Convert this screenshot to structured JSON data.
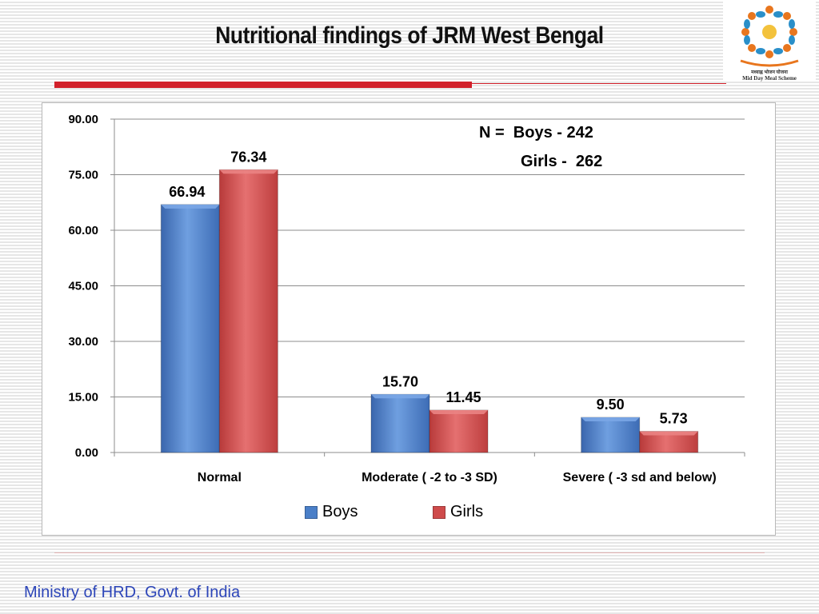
{
  "slide": {
    "title": "Nutritional findings of JRM West Bengal",
    "footer": "Ministry of HRD, Govt. of India",
    "logo_text_hindi": "मध्याह्न भोजन योजना",
    "logo_text_en": "Mid Day Meal Scheme"
  },
  "chart_data": {
    "type": "bar",
    "categories": [
      "Normal",
      "Moderate ( -2 to -3 SD)",
      "Severe  ( -3 sd and below)"
    ],
    "series": [
      {
        "name": "Boys",
        "values": [
          66.94,
          15.7,
          9.5
        ],
        "labels": [
          "66.94",
          "15.70",
          "9.50"
        ],
        "color": "#4a7fc8"
      },
      {
        "name": "Girls",
        "values": [
          76.34,
          11.45,
          5.73
        ],
        "labels": [
          "76.34",
          "11.45",
          "5.73"
        ],
        "color": "#cf4b4b"
      }
    ],
    "yticks": [
      "0.00",
      "15.00",
      "30.00",
      "45.00",
      "60.00",
      "75.00",
      "90.00"
    ],
    "ylim": [
      0,
      90
    ],
    "grid": true,
    "legend_position": "bottom",
    "annotation": {
      "line1": "N =  Boys - 242",
      "line2": "Girls -  262"
    }
  }
}
